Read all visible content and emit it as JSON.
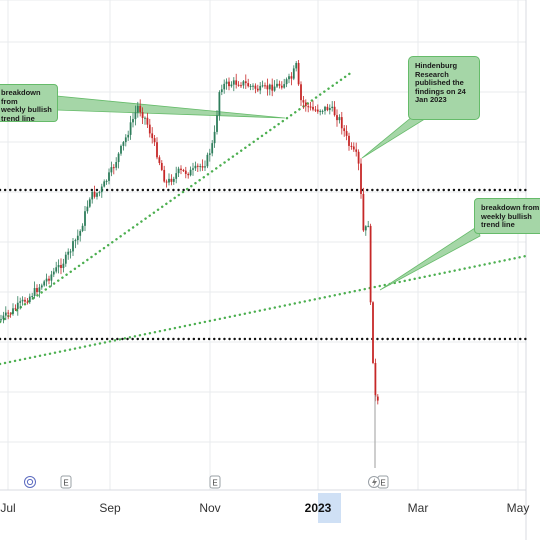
{
  "chart_data": {
    "type": "candlestick",
    "xlabel": "",
    "ylabel": "",
    "x_ticks": [
      {
        "label": "Jul",
        "bold": false
      },
      {
        "label": "Sep",
        "bold": false
      },
      {
        "label": "Nov",
        "bold": false
      },
      {
        "label": "2023",
        "bold": true,
        "highlighted": true
      },
      {
        "label": "Mar",
        "bold": false
      },
      {
        "label": "May",
        "bold": false
      }
    ],
    "event_markers": [
      "E",
      "E",
      "E"
    ],
    "grid": true,
    "colors": {
      "up": "#2e7d5b",
      "down": "#c62828",
      "trendline": "#4caf50",
      "support": "#111111",
      "callout_bg": "#a5d6a7",
      "callout_border": "#66bb6a",
      "axis_highlight": "#cfe0f5",
      "grid": "#e9ebee"
    },
    "annotations": [
      {
        "name": "callout-breakdown-weekly-left",
        "text": "breakdown from\nweekly bullish\ntrend line"
      },
      {
        "name": "callout-hindenburg",
        "text": "Hindenburg\nResearch\npublished the\nfindings on 24\nJan 2023"
      },
      {
        "name": "callout-breakdown-weekly-right",
        "text": "breakdown from\nweekly bullish\ntrend line"
      }
    ]
  },
  "icons": {
    "event_circle": "dividend-circle-icon",
    "event_e": "earnings-e-icon",
    "lightning": "lightning-icon"
  }
}
